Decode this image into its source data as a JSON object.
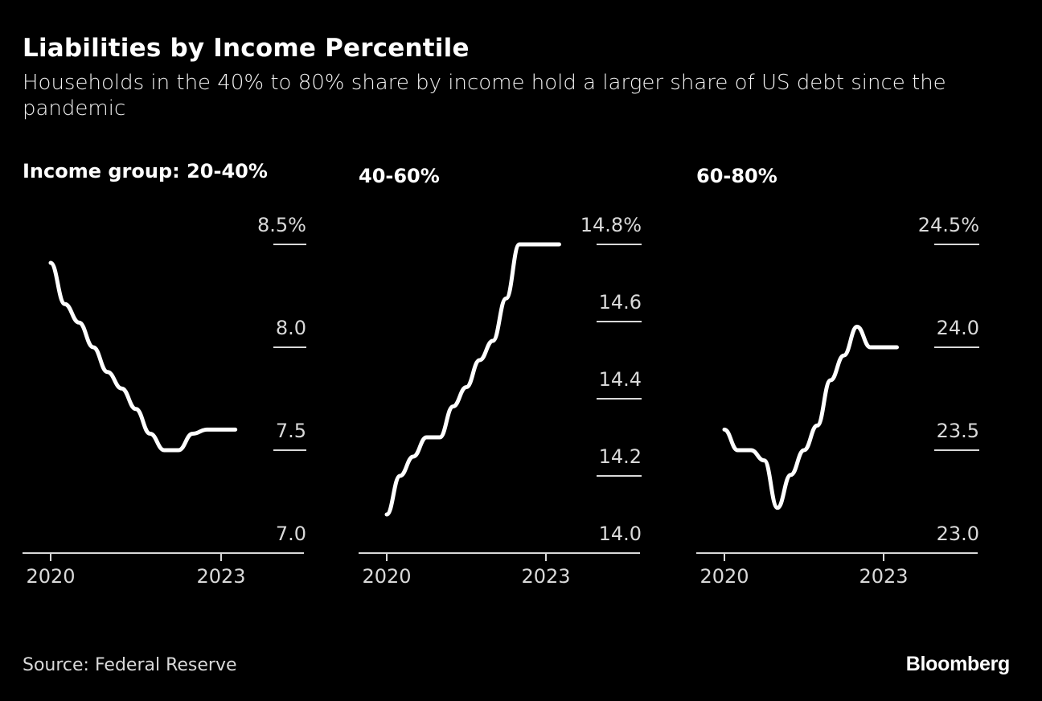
{
  "header": {
    "title": "Liabilities by Income Percentile",
    "subtitle": "Households in the 40% to 80% share by income hold a larger share of US debt since the pandemic"
  },
  "footer": {
    "source": "Source: Federal Reserve",
    "brand": "Bloomberg"
  },
  "colors": {
    "background": "#000000",
    "line": "#ffffff",
    "axis": "#d9d9d9"
  },
  "chart_data": [
    {
      "type": "line",
      "title": "Income group: 20-40%",
      "xlabel": "",
      "ylabel": "",
      "x": [
        2020.0,
        2020.25,
        2020.5,
        2020.75,
        2021.0,
        2021.25,
        2021.5,
        2021.75,
        2022.0,
        2022.25,
        2022.5,
        2022.75,
        2023.0,
        2023.25
      ],
      "x_ticks": [
        2020,
        2023
      ],
      "x_tick_labels": [
        "2020",
        "2023"
      ],
      "series": [
        {
          "name": "20-40%",
          "values": [
            8.41,
            8.21,
            8.12,
            8.0,
            7.88,
            7.8,
            7.7,
            7.58,
            7.5,
            7.5,
            7.58,
            7.6,
            7.6,
            7.6
          ]
        }
      ],
      "ylim": [
        7.0,
        8.5
      ],
      "y_ticks": [
        7.0,
        7.5,
        8.0,
        8.5
      ],
      "y_tick_labels": [
        "7.0",
        "7.5",
        "8.0",
        "8.5%"
      ],
      "grid": true,
      "axis_side": "right"
    },
    {
      "type": "line",
      "title": "40-60%",
      "xlabel": "",
      "ylabel": "",
      "x": [
        2020.0,
        2020.25,
        2020.5,
        2020.75,
        2021.0,
        2021.25,
        2021.5,
        2021.75,
        2022.0,
        2022.25,
        2022.5,
        2022.75,
        2023.0,
        2023.25
      ],
      "x_ticks": [
        2020,
        2023
      ],
      "x_tick_labels": [
        "2020",
        "2023"
      ],
      "series": [
        {
          "name": "40-60%",
          "values": [
            14.1,
            14.2,
            14.25,
            14.3,
            14.3,
            14.38,
            14.43,
            14.5,
            14.55,
            14.66,
            14.8,
            14.8,
            14.8,
            14.8
          ]
        }
      ],
      "ylim": [
        14.0,
        14.8
      ],
      "y_ticks": [
        14.0,
        14.2,
        14.4,
        14.6,
        14.8
      ],
      "y_tick_labels": [
        "14.0",
        "14.2",
        "14.4",
        "14.6",
        "14.8%"
      ],
      "grid": true,
      "axis_side": "right"
    },
    {
      "type": "line",
      "title": "60-80%",
      "xlabel": "",
      "ylabel": "",
      "x": [
        2020.0,
        2020.25,
        2020.5,
        2020.75,
        2021.0,
        2021.25,
        2021.5,
        2021.75,
        2022.0,
        2022.25,
        2022.5,
        2022.75,
        2023.0,
        2023.25
      ],
      "x_ticks": [
        2020,
        2023
      ],
      "x_tick_labels": [
        "2020",
        "2023"
      ],
      "series": [
        {
          "name": "60-80%",
          "values": [
            23.6,
            23.5,
            23.5,
            23.45,
            23.22,
            23.38,
            23.5,
            23.62,
            23.84,
            23.96,
            24.1,
            24.0,
            24.0,
            24.0
          ]
        }
      ],
      "ylim": [
        23.0,
        24.5
      ],
      "y_ticks": [
        23.0,
        23.5,
        24.0,
        24.5
      ],
      "y_tick_labels": [
        "23.0",
        "23.5",
        "24.0",
        "24.5%"
      ],
      "grid": true,
      "axis_side": "right"
    }
  ]
}
